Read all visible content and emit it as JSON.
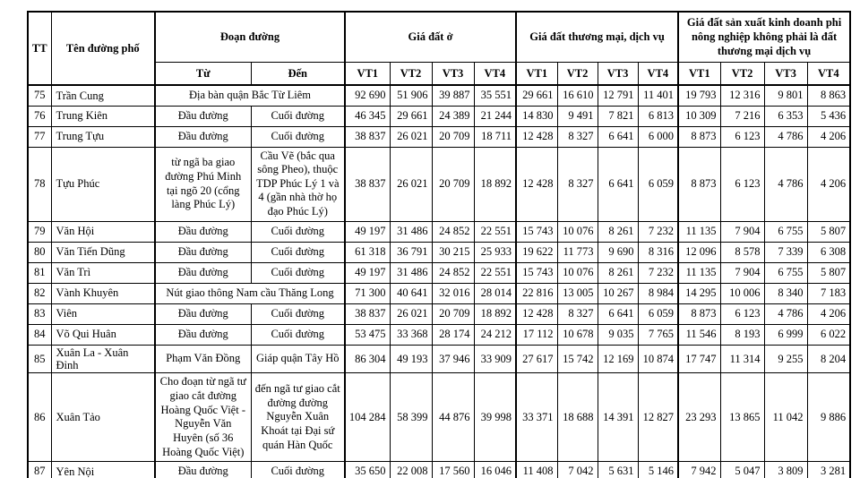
{
  "table": {
    "headers": {
      "tt": "TT",
      "street": "Tên đường phố",
      "section": "Đoạn đường",
      "from": "Từ",
      "to": "Đến",
      "groups": [
        {
          "label": "Giá đất ở",
          "cols": [
            "VT1",
            "VT2",
            "VT3",
            "VT4"
          ]
        },
        {
          "label": "Giá đất thương mại, dịch vụ",
          "cols": [
            "VT1",
            "VT2",
            "VT3",
            "VT4"
          ]
        },
        {
          "label": "Giá đất sản xuất kinh doanh phi nông nghiệp không phải là đất thương mại dịch vụ",
          "cols": [
            "VT1",
            "VT2",
            "VT3",
            "VT4"
          ]
        }
      ]
    },
    "rows": [
      {
        "tt": "75",
        "name": "Trần Cung",
        "from": "Địa bàn quận Bắc Từ Liêm",
        "to": null,
        "values": [
          "92 690",
          "51 906",
          "39 887",
          "35 551",
          "29 661",
          "16 610",
          "12 791",
          "11 401",
          "19 793",
          "12 316",
          "9 801",
          "8 863"
        ]
      },
      {
        "tt": "76",
        "name": "Trung Kiên",
        "from": "Đầu đường",
        "to": "Cuối đường",
        "values": [
          "46 345",
          "29 661",
          "24 389",
          "21 244",
          "14 830",
          "9 491",
          "7 821",
          "6 813",
          "10 309",
          "7 216",
          "6 353",
          "5 436"
        ]
      },
      {
        "tt": "77",
        "name": "Trung Tựu",
        "from": "Đầu đường",
        "to": "Cuối đường",
        "values": [
          "38 837",
          "26 021",
          "20 709",
          "18 711",
          "12 428",
          "8 327",
          "6 641",
          "6 000",
          "8 873",
          "6 123",
          "4 786",
          "4 206"
        ]
      },
      {
        "tt": "78",
        "name": "Tựu Phúc",
        "from": "từ ngã ba giao đường Phú Minh tại ngõ 20 (cổng làng Phúc Lý)",
        "to": "Cầu Vẽ (bắc qua sông Pheo), thuộc TDP Phúc Lý 1 và 4 (gần nhà thờ họ đạo Phúc Lý)",
        "values": [
          "38 837",
          "26 021",
          "20 709",
          "18 892",
          "12 428",
          "8 327",
          "6 641",
          "6 059",
          "8 873",
          "6 123",
          "4 786",
          "4 206"
        ]
      },
      {
        "tt": "79",
        "name": "Văn Hội",
        "from": "Đầu đường",
        "to": "Cuối đường",
        "values": [
          "49 197",
          "31 486",
          "24 852",
          "22 551",
          "15 743",
          "10 076",
          "8 261",
          "7 232",
          "11 135",
          "7 904",
          "6 755",
          "5 807"
        ]
      },
      {
        "tt": "80",
        "name": "Văn Tiến Dũng",
        "from": "Đầu đường",
        "to": "Cuối đường",
        "values": [
          "61 318",
          "36 791",
          "30 215",
          "25 933",
          "19 622",
          "11 773",
          "9 690",
          "8 316",
          "12 096",
          "8 578",
          "7 339",
          "6 308"
        ]
      },
      {
        "tt": "81",
        "name": "Văn Trì",
        "from": "Đầu đường",
        "to": "Cuối đường",
        "values": [
          "49 197",
          "31 486",
          "24 852",
          "22 551",
          "15 743",
          "10 076",
          "8 261",
          "7 232",
          "11 135",
          "7 904",
          "6 755",
          "5 807"
        ]
      },
      {
        "tt": "82",
        "name": "Vành Khuyên",
        "from": "Nút giao thông Nam cầu Thăng Long",
        "to": null,
        "values": [
          "71 300",
          "40 641",
          "32 016",
          "28 014",
          "22 816",
          "13 005",
          "10 267",
          "8 984",
          "14 295",
          "10 006",
          "8 340",
          "7 183"
        ]
      },
      {
        "tt": "83",
        "name": "Viên",
        "from": "Đầu đường",
        "to": "Cuối đường",
        "values": [
          "38 837",
          "26 021",
          "20 709",
          "18 892",
          "12 428",
          "8 327",
          "6 641",
          "6 059",
          "8 873",
          "6 123",
          "4 786",
          "4 206"
        ]
      },
      {
        "tt": "84",
        "name": "Võ Qui Huân",
        "from": "Đầu đường",
        "to": "Cuối đường",
        "values": [
          "53 475",
          "33 368",
          "28 174",
          "24 212",
          "17 112",
          "10 678",
          "9 035",
          "7 765",
          "11 546",
          "8 193",
          "6 999",
          "6 022"
        ]
      },
      {
        "tt": "85",
        "name": "Xuân La - Xuân Đỉnh",
        "from": "Phạm Văn Đồng",
        "to": "Giáp quận Tây Hồ",
        "values": [
          "86 304",
          "49 193",
          "37 946",
          "33 909",
          "27 617",
          "15 742",
          "12 169",
          "10 874",
          "17 747",
          "11 314",
          "9 255",
          "8 204"
        ]
      },
      {
        "tt": "86",
        "name": "Xuân Tảo",
        "from": "Cho đoạn từ ngã tư giao cắt đường Hoàng Quốc Việt - Nguyễn Văn Huyên (số 36 Hoàng Quốc Việt)",
        "to": "đến ngã tư giao cắt đường đường Nguyễn Xuân Khoát tại Đại sứ quán Hàn Quốc",
        "values": [
          "104 284",
          "58 399",
          "44 876",
          "39 998",
          "33 371",
          "18 688",
          "14 391",
          "12 827",
          "23 293",
          "13 865",
          "11 042",
          "9 886"
        ]
      },
      {
        "tt": "87",
        "name": "Yên Nội",
        "from": "Đầu đường",
        "to": "Cuối đường",
        "values": [
          "35 650",
          "22 008",
          "17 560",
          "16 046",
          "11 408",
          "7 042",
          "5 631",
          "5 146",
          "7 942",
          "5 047",
          "3 809",
          "3 281"
        ]
      }
    ]
  }
}
